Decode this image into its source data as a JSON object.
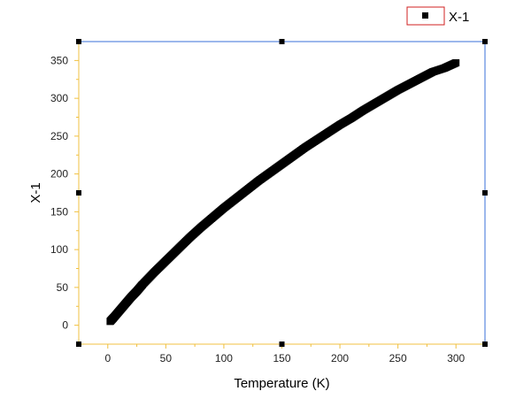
{
  "chart_data": {
    "type": "scatter",
    "title": "",
    "xlabel": "Temperature (K)",
    "ylabel": "X-1",
    "xlim": [
      -25,
      325
    ],
    "ylim": [
      -25,
      375
    ],
    "x_ticks": [
      0,
      50,
      100,
      150,
      200,
      250,
      300
    ],
    "y_ticks": [
      0,
      50,
      100,
      150,
      200,
      250,
      300,
      350
    ],
    "grid": false,
    "legend": {
      "position": "top-right",
      "entries": [
        "X-1"
      ]
    },
    "series": [
      {
        "name": "X-1",
        "marker": "square",
        "color": "#000000",
        "x": [
          2,
          5,
          10,
          15,
          20,
          25,
          30,
          40,
          50,
          60,
          70,
          80,
          90,
          100,
          110,
          120,
          130,
          140,
          150,
          160,
          170,
          180,
          190,
          200,
          210,
          220,
          230,
          240,
          250,
          260,
          270,
          280,
          290,
          300
        ],
        "y": [
          5,
          10,
          19,
          28,
          37,
          45,
          54,
          70,
          85,
          100,
          115,
          129,
          142,
          155,
          167,
          179,
          191,
          202,
          213,
          224,
          235,
          245,
          255,
          265,
          274,
          284,
          293,
          302,
          311,
          319,
          327,
          335,
          340,
          347
        ]
      }
    ]
  }
}
